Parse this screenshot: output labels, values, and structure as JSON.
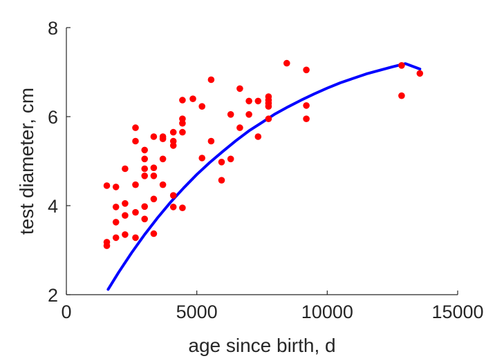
{
  "chart_data": {
    "type": "scatter",
    "title": "",
    "xlabel": "age since birth, d",
    "ylabel": "test diameter, cm",
    "xlim": [
      0,
      15000
    ],
    "ylim": [
      2,
      8
    ],
    "xticks": [
      0,
      5000,
      10000,
      15000
    ],
    "xtick_labels": [
      "0",
      "5000",
      "10000",
      "15000"
    ],
    "yticks": [
      2,
      4,
      6,
      8
    ],
    "ytick_labels": [
      "2",
      "4",
      "6",
      "8"
    ],
    "grid": false,
    "legend": "none",
    "series": [
      {
        "kind": "scatter",
        "color": "#ff0000",
        "points": [
          [
            1550,
            4.45
          ],
          [
            1550,
            3.18
          ],
          [
            1550,
            3.1
          ],
          [
            1900,
            4.42
          ],
          [
            1900,
            3.97
          ],
          [
            1900,
            3.63
          ],
          [
            1900,
            3.28
          ],
          [
            2250,
            4.83
          ],
          [
            2250,
            4.05
          ],
          [
            2250,
            3.78
          ],
          [
            2250,
            3.35
          ],
          [
            2650,
            5.75
          ],
          [
            2650,
            5.45
          ],
          [
            2650,
            4.47
          ],
          [
            2650,
            3.85
          ],
          [
            2650,
            3.28
          ],
          [
            3000,
            5.25
          ],
          [
            3000,
            5.05
          ],
          [
            3000,
            4.83
          ],
          [
            3000,
            4.67
          ],
          [
            3000,
            3.98
          ],
          [
            3000,
            3.7
          ],
          [
            3350,
            5.55
          ],
          [
            3350,
            4.85
          ],
          [
            3350,
            4.67
          ],
          [
            3350,
            4.15
          ],
          [
            3350,
            3.37
          ],
          [
            3700,
            5.55
          ],
          [
            3700,
            5.5
          ],
          [
            3700,
            5.05
          ],
          [
            3700,
            4.47
          ],
          [
            4100,
            5.65
          ],
          [
            4100,
            5.45
          ],
          [
            4100,
            5.35
          ],
          [
            4100,
            4.23
          ],
          [
            4100,
            3.97
          ],
          [
            4450,
            6.37
          ],
          [
            4450,
            5.95
          ],
          [
            4450,
            5.85
          ],
          [
            4450,
            5.65
          ],
          [
            4450,
            3.95
          ],
          [
            4850,
            6.4
          ],
          [
            5200,
            6.23
          ],
          [
            5200,
            5.07
          ],
          [
            5550,
            6.83
          ],
          [
            5550,
            5.45
          ],
          [
            5950,
            4.98
          ],
          [
            5950,
            4.57
          ],
          [
            6300,
            6.05
          ],
          [
            6300,
            5.05
          ],
          [
            6650,
            6.63
          ],
          [
            6650,
            5.75
          ],
          [
            7000,
            6.35
          ],
          [
            7000,
            6.05
          ],
          [
            7350,
            6.35
          ],
          [
            7350,
            5.55
          ],
          [
            7750,
            6.45
          ],
          [
            7750,
            6.37
          ],
          [
            7750,
            6.3
          ],
          [
            7750,
            6.23
          ],
          [
            7750,
            5.95
          ],
          [
            8450,
            7.2
          ],
          [
            9200,
            7.05
          ],
          [
            9200,
            6.25
          ],
          [
            9200,
            5.95
          ],
          [
            12850,
            7.15
          ],
          [
            12850,
            6.47
          ],
          [
            13550,
            6.97
          ]
        ]
      },
      {
        "kind": "line",
        "color": "#0000ff",
        "x": [
          1600,
          2000,
          2500,
          3000,
          3500,
          4000,
          4500,
          5000,
          5500,
          6000,
          6500,
          7000,
          7500,
          8000,
          8500,
          9000,
          9500,
          10000,
          10500,
          11000,
          11500,
          12000,
          12500,
          13000,
          13550
        ],
        "y": [
          2.12,
          2.5,
          2.94,
          3.35,
          3.73,
          4.08,
          4.4,
          4.7,
          4.97,
          5.22,
          5.46,
          5.68,
          5.87,
          6.06,
          6.22,
          6.37,
          6.51,
          6.64,
          6.76,
          6.86,
          6.96,
          7.04,
          7.12,
          7.19,
          7.07
        ]
      }
    ]
  }
}
